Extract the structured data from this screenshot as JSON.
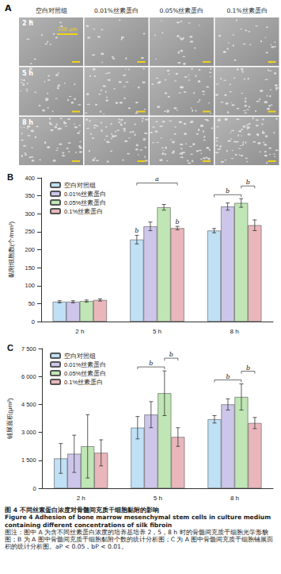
{
  "panel_a": {
    "label": "A",
    "columns": [
      "空白对照组",
      "0.01%丝素蛋白",
      "0.05%丝素蛋白",
      "0.1%丝素蛋白"
    ],
    "rows": [
      "2 h",
      "5 h",
      "8 h"
    ],
    "scale_bar": "100 μm"
  },
  "chart_data": [
    {
      "type": "bar",
      "title": "B",
      "y_label": "黏附细胞数(个/mm²)",
      "categories": [
        "2 h",
        "5 h",
        "8 h"
      ],
      "series": [
        {
          "name": "空白对照组",
          "color": "#bfe0f5",
          "values": [
            55,
            228,
            253
          ],
          "errors": [
            3,
            12,
            6
          ]
        },
        {
          "name": "0.01%丝素蛋白",
          "color": "#cdc6ea",
          "values": [
            55,
            265,
            320
          ],
          "errors": [
            3,
            12,
            10
          ]
        },
        {
          "name": "0.05%丝素蛋白",
          "color": "#bfe6b4",
          "values": [
            57,
            318,
            330
          ],
          "errors": [
            3,
            8,
            12
          ]
        },
        {
          "name": "0.1%丝素蛋白",
          "color": "#e9b7bb",
          "values": [
            60,
            260,
            268
          ],
          "errors": [
            3,
            5,
            15
          ]
        }
      ],
      "annotations": [
        {
          "text": "b",
          "category": "5 h",
          "from": "空白对照组",
          "to": "空白对照组"
        },
        {
          "text": "b",
          "category": "5 h",
          "from": "0.1%丝素蛋白",
          "to": "0.1%丝素蛋白"
        },
        {
          "text": "a",
          "category": "5 h",
          "from": "空白对照组",
          "to": "0.1%丝素蛋白"
        },
        {
          "text": "b",
          "category": "8 h",
          "from": "空白对照组",
          "to": "0.05%丝素蛋白"
        },
        {
          "text": "b",
          "category": "8 h",
          "from": "0.05%丝素蛋白",
          "to": "0.1%丝素蛋白"
        }
      ],
      "ylim": [
        0,
        400
      ],
      "yticks": [
        0,
        50,
        100,
        150,
        200,
        250,
        300,
        350,
        400
      ],
      "legend": "upper left",
      "grid": false
    },
    {
      "type": "bar",
      "title": "C",
      "y_label": "铺展面积(μm²)",
      "categories": [
        "2 h",
        "5 h",
        "8 h"
      ],
      "series": [
        {
          "name": "空白对照组",
          "color": "#bfe0f5",
          "values": [
            1600,
            3250,
            3700
          ],
          "errors": [
            800,
            600,
            200
          ]
        },
        {
          "name": "0.01%丝素蛋白",
          "color": "#cdc6ea",
          "values": [
            1850,
            3950,
            4500
          ],
          "errors": [
            1000,
            700,
            300
          ]
        },
        {
          "name": "0.05%丝素蛋白",
          "color": "#bfe6b4",
          "values": [
            2250,
            5100,
            4900
          ],
          "errors": [
            1700,
            1200,
            700
          ]
        },
        {
          "name": "0.1%丝素蛋白",
          "color": "#e9b7bb",
          "values": [
            1900,
            2750,
            3500
          ],
          "errors": [
            700,
            500,
            300
          ]
        }
      ],
      "annotations": [
        {
          "text": "b",
          "category": "5 h",
          "from": "空白对照组",
          "to": "0.05%丝素蛋白"
        },
        {
          "text": "b",
          "category": "5 h",
          "from": "0.05%丝素蛋白",
          "to": "0.1%丝素蛋白"
        },
        {
          "text": "b",
          "category": "8 h",
          "from": "空白对照组",
          "to": "0.05%丝素蛋白"
        },
        {
          "text": "b",
          "category": "8 h",
          "from": "0.05%丝素蛋白",
          "to": "0.1%丝素蛋白"
        }
      ],
      "ylim": [
        0,
        7500
      ],
      "yticks": [
        0,
        {
          "value": 1500,
          "label": "1 500"
        },
        {
          "value": 3000,
          "label": "3 000"
        },
        {
          "value": 4500,
          "label": "4 500"
        },
        {
          "value": 6000,
          "label": "6 000"
        },
        {
          "value": 7500,
          "label": "7 500"
        }
      ],
      "legend": "upper left",
      "grid": false
    }
  ],
  "caption": {
    "title_zh": "图 4  不同丝素蛋白浓度对骨髓间充质干细胞黏附的影响",
    "title_en": "Figure 4  Adhesion of bone marrow mesenchymal stem cells in culture medium containing different concentrations of silk fibroin",
    "note": "图注：图中 A 为含不同丝素蛋白浓度的培养基培养 2，5，8 h 时的骨髓间充质干细胞光学形貌图；B 为 A 图中骨髓间充质干细胞黏附个数的统计分析图；C 为 A 图中骨髓间充质干细胞铺展面积的统计分析图。aP < 0.05，bP < 0.01。"
  }
}
